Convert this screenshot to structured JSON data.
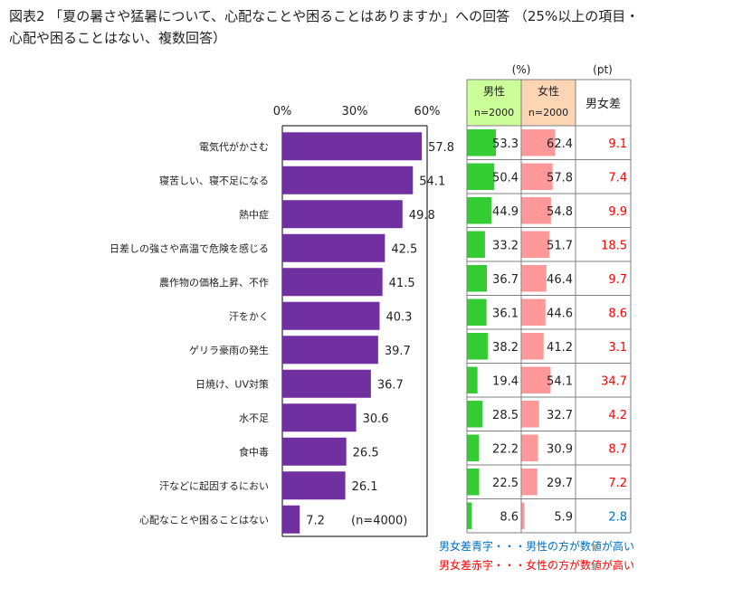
{
  "title": {
    "line1": "図表2 「夏の暑さや猛暑について、心配なことや困ることはありますか」への回答 （25%以上の項目・",
    "line2": "心配や困ることはない、複数回答）"
  },
  "chart_data": {
    "type": "bar",
    "orientation": "horizontal",
    "xlim": [
      0,
      60
    ],
    "x_ticks": [
      "0%",
      "30%",
      "60%"
    ],
    "categories": [
      "電気代がかさむ",
      "寝苦しい、寝不足になる",
      "熱中症",
      "日差しの強さや高温で危険を感じる",
      "農作物の価格上昇、不作",
      "汗をかく",
      "ゲリラ豪雨の発生",
      "日焼け、UV対策",
      "水不足",
      "食中毒",
      "汗などに起因するにおい",
      "心配なことや困ることはない"
    ],
    "values": [
      57.8,
      54.1,
      49.8,
      42.5,
      41.5,
      40.3,
      39.7,
      36.7,
      30.6,
      26.5,
      26.1,
      7.2
    ],
    "value_labels": [
      "57.8",
      "54.1",
      "49.8",
      "42.5",
      "41.5",
      "40.3",
      "39.7",
      "36.7",
      "30.6",
      "26.5",
      "26.1",
      "7.2"
    ],
    "n_note": "(n=4000)",
    "bar_color": "#7030a0",
    "table": {
      "unit_pct": "(%)",
      "unit_pt": "(pt)",
      "male_header": "男性",
      "female_header": "女性",
      "male_n": "n=2000",
      "female_n": "n=2000",
      "diff_header": "男女差",
      "male": [
        53.3,
        50.4,
        44.9,
        33.2,
        36.7,
        36.1,
        38.2,
        19.4,
        28.5,
        22.2,
        22.5,
        8.6
      ],
      "female": [
        62.4,
        57.8,
        54.8,
        51.7,
        46.4,
        44.6,
        41.2,
        54.1,
        32.7,
        30.9,
        29.7,
        5.9
      ],
      "male_labels": [
        "53.3",
        "50.4",
        "44.9",
        "33.2",
        "36.7",
        "36.1",
        "38.2",
        "19.4",
        "28.5",
        "22.2",
        "22.5",
        "8.6"
      ],
      "female_labels": [
        "62.4",
        "57.8",
        "54.8",
        "51.7",
        "46.4",
        "44.6",
        "41.2",
        "54.1",
        "32.7",
        "30.9",
        "29.7",
        "5.9"
      ],
      "diff": [
        "9.1",
        "7.4",
        "9.9",
        "18.5",
        "9.7",
        "8.6",
        "3.1",
        "34.7",
        "4.2",
        "8.7",
        "7.2",
        "2.8"
      ],
      "diff_color_key": [
        "red",
        "red",
        "red",
        "red",
        "red",
        "red",
        "red",
        "red",
        "red",
        "red",
        "red",
        "blue"
      ],
      "male_header_bg": "#ccff99",
      "female_header_bg": "#fcd5b4",
      "male_bar_color": "#33cc33",
      "female_bar_color": "#ff9999",
      "diff_red": "#ff0000",
      "diff_blue": "#0070c0"
    }
  },
  "notes": {
    "blue": "男女差青字・・・男性の方が数値が高い",
    "red": "男女差赤字・・・女性の方が数値が高い"
  }
}
